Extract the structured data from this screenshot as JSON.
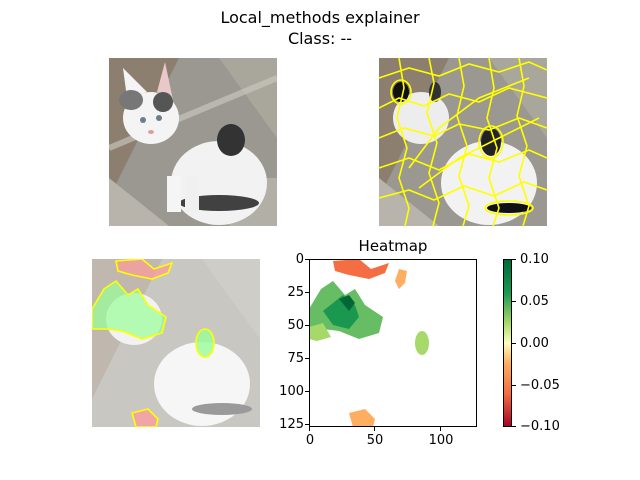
{
  "figure": {
    "title_line1": "Local_methods explainer",
    "title_line2": "Class: --"
  },
  "panels": {
    "original": {
      "name": "original-image"
    },
    "superpixels": {
      "name": "superpixel-segmentation"
    },
    "overlay": {
      "name": "explanation-overlay"
    },
    "heatmap": {
      "title": "Heatmap",
      "x_ticks": [
        "0",
        "50",
        "100"
      ],
      "y_ticks": [
        "0",
        "25",
        "50",
        "75",
        "100",
        "125"
      ]
    }
  },
  "chart_data": {
    "type": "heatmap",
    "title": "Heatmap",
    "xlim": [
      0,
      128
    ],
    "ylim": [
      128,
      0
    ],
    "x_ticks": [
      0,
      50,
      100
    ],
    "y_ticks": [
      0,
      25,
      50,
      75,
      100,
      125
    ],
    "colorbar": {
      "range": [
        -0.1,
        0.1
      ],
      "ticks": [
        "0.10",
        "0.05",
        "0.00",
        "−0.05",
        "−0.10"
      ],
      "colors": [
        "#1a7837",
        "#a6d96a",
        "#ffffbf",
        "#fdae61",
        "#a50026"
      ]
    }
  }
}
